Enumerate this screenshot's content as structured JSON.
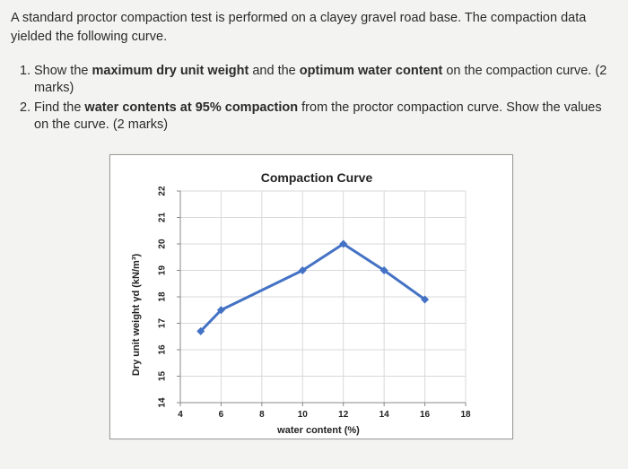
{
  "question": {
    "intro": "A standard proctor compaction test is performed on a clayey gravel road base. The compaction data yielded the following curve.",
    "items": [
      {
        "number": "1.",
        "parts": [
          {
            "text": "Show the ",
            "bold": false
          },
          {
            "text": "maximum dry unit weight",
            "bold": true
          },
          {
            "text": " and the ",
            "bold": false
          },
          {
            "text": "optimum water content",
            "bold": true
          },
          {
            "text": " on the compaction curve. (2 marks)",
            "bold": false
          }
        ]
      },
      {
        "number": "2.",
        "parts": [
          {
            "text": "Find the ",
            "bold": false
          },
          {
            "text": "water contents at 95% compaction",
            "bold": true
          },
          {
            "text": " from the proctor compaction curve. Show the values on the curve. (2 marks)",
            "bold": false
          }
        ]
      }
    ]
  },
  "chart_data": {
    "type": "line",
    "title": "Compaction Curve",
    "xlabel": "water content (%)",
    "ylabel": "Dry unit weight γd (kN/m³)",
    "xlim": [
      4,
      18
    ],
    "ylim": [
      14,
      22
    ],
    "x_ticks": [
      4,
      6,
      8,
      10,
      12,
      14,
      16,
      18
    ],
    "y_ticks": [
      14,
      15,
      16,
      17,
      18,
      19,
      20,
      21,
      22
    ],
    "grid": true,
    "series": [
      {
        "x": [
          5,
          6,
          10,
          12,
          14,
          16
        ],
        "y": [
          16.7,
          17.5,
          19.0,
          20.0,
          19.0,
          17.9
        ],
        "color": "#4472c4"
      }
    ]
  }
}
